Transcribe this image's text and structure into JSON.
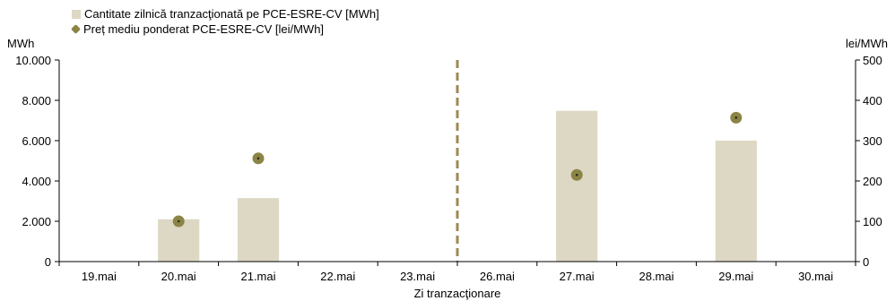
{
  "chart_data": {
    "type": "bar",
    "categories": [
      "19.mai",
      "20.mai",
      "21.mai",
      "22.mai",
      "23.mai",
      "26.mai",
      "27.mai",
      "28.mai",
      "29.mai",
      "30.mai"
    ],
    "series": [
      {
        "name": "Cantitate zilnică tranzacţionată pe PCE-ESRE-CV [MWh]",
        "type": "bar",
        "axis": "left",
        "color": "#ddd8c4",
        "values": [
          null,
          2100,
          3150,
          null,
          null,
          null,
          7480,
          null,
          6000,
          null
        ]
      },
      {
        "name": "Preț mediu ponderat PCE-ESRE-CV [lei/MWh]",
        "type": "scatter",
        "axis": "right",
        "color": "#8b8445",
        "values": [
          null,
          100,
          256,
          null,
          null,
          null,
          215,
          null,
          357,
          null
        ]
      }
    ],
    "xlabel": "Zi tranzacţionare",
    "ylabel_left": "MWh",
    "ylabel_right": "lei/MWh",
    "ylim_left": [
      0,
      10000
    ],
    "ylim_right": [
      0,
      500
    ],
    "yticks_left": [
      "0",
      "2.000",
      "4.000",
      "6.000",
      "8.000",
      "10.000"
    ],
    "yticks_right": [
      "0",
      "100",
      "200",
      "300",
      "400",
      "500"
    ],
    "separator_after_category": "23.mai",
    "separator_color": "#9c8a55",
    "grid": false,
    "legend_position": "top-left"
  }
}
